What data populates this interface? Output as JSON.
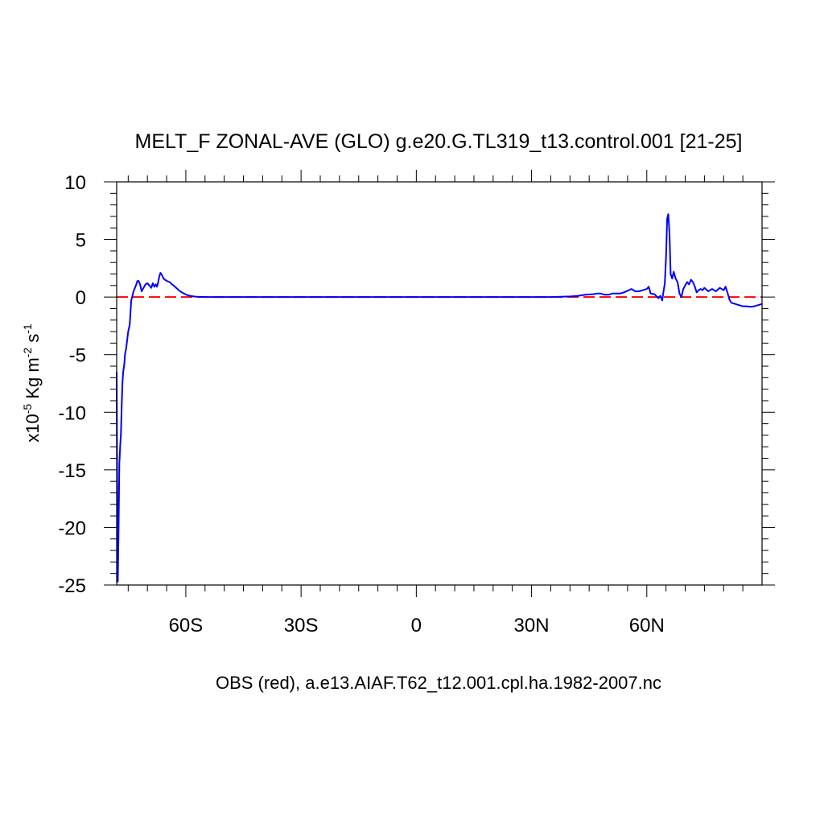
{
  "chart_data": {
    "type": "line",
    "title": "MELT_F ZONAL-AVE (GLO) g.e20.G.TL319_t13.control.001 [21-25]",
    "xlabel": "OBS (red), a.e13.AIAF.T62_t12.001.cpl.ha.1982-2007.nc",
    "ylabel": {
      "prefix": "x10",
      "exp1": "-5",
      "mid": " Kg m",
      "exp2": "-2",
      "mid2": " s",
      "exp3": "-1"
    },
    "xlim": [
      -78,
      90
    ],
    "ylim": [
      -25,
      10
    ],
    "x_ticks": [
      {
        "value": -60,
        "label": "60S"
      },
      {
        "value": -30,
        "label": "30S"
      },
      {
        "value": 0,
        "label": "0"
      },
      {
        "value": 30,
        "label": "30N"
      },
      {
        "value": 60,
        "label": "60N"
      }
    ],
    "y_ticks": [
      {
        "value": 10,
        "label": "10"
      },
      {
        "value": 5,
        "label": "5"
      },
      {
        "value": 0,
        "label": "0"
      },
      {
        "value": -5,
        "label": "-5"
      },
      {
        "value": -10,
        "label": "-10"
      },
      {
        "value": -15,
        "label": "-15"
      },
      {
        "value": -20,
        "label": "-20"
      },
      {
        "value": -25,
        "label": "-25"
      }
    ],
    "series": [
      {
        "color": "#0000ff",
        "style": "solid",
        "x": [
          -78.0,
          -77.9,
          -77.7,
          -77.5,
          -77.3,
          -77.1,
          -76.9,
          -76.7,
          -76.5,
          -76.3,
          -76.0,
          -75.8,
          -75.5,
          -75.0,
          -74.6,
          -74.2,
          -73.6,
          -73.0,
          -72.6,
          -72.3,
          -71.9,
          -71.5,
          -71.0,
          -70.5,
          -70.0,
          -69.5,
          -69.0,
          -68.6,
          -68.2,
          -67.8,
          -67.5,
          -67.2,
          -66.9,
          -66.6,
          -66.2,
          -65.8,
          -65.4,
          -65.0,
          -64.6,
          -64.3,
          -64.0,
          -63.6,
          -63.2,
          -62.5,
          -61.5,
          -60.5,
          -59.5,
          -58.5,
          -57.5,
          -56.5,
          -55.5,
          -54.5,
          -53.0,
          -51.0,
          -48.0,
          -40.0,
          -20.0,
          0.0,
          20.0,
          35.0,
          40.0,
          42.0,
          44.0,
          46.0,
          47.0,
          48.0,
          49.0,
          50.0,
          51.0,
          52.0,
          53.0,
          54.0,
          55.0,
          56.0,
          57.0,
          58.0,
          59.0,
          60.0,
          60.5,
          61.0,
          62.0,
          63.0,
          63.5,
          64.0,
          64.4,
          64.7,
          65.0,
          65.3,
          65.6,
          65.9,
          66.2,
          66.6,
          67.0,
          67.5,
          68.0,
          68.5,
          69.0,
          69.5,
          70.0,
          70.5,
          71.0,
          71.5,
          72.0,
          72.5,
          73.0,
          73.5,
          74.0,
          74.5,
          75.0,
          76.0,
          77.0,
          78.0,
          79.0,
          80.0,
          80.5,
          81.0,
          81.5,
          82.0,
          83.0,
          84.0,
          85.0,
          86.0,
          87.0,
          88.0,
          89.0,
          90.0
        ],
        "y": [
          -6.5,
          -15.0,
          -24.7,
          -20.0,
          -14.5,
          -13.0,
          -11.9,
          -9.5,
          -7.4,
          -6.5,
          -5.8,
          -4.9,
          -4.4,
          -3.0,
          -2.4,
          -0.3,
          0.5,
          1.0,
          1.4,
          1.4,
          1.1,
          0.5,
          0.8,
          1.1,
          1.2,
          1.0,
          0.8,
          1.2,
          0.9,
          1.1,
          0.9,
          1.3,
          1.8,
          2.1,
          1.9,
          1.6,
          1.5,
          1.4,
          1.35,
          1.3,
          1.25,
          1.1,
          1.0,
          0.8,
          0.5,
          0.3,
          0.15,
          0.08,
          0.04,
          0.02,
          0.01,
          0.0,
          0.0,
          0.0,
          0.0,
          0.0,
          0.0,
          0.0,
          0.0,
          0.0,
          0.05,
          0.1,
          0.2,
          0.25,
          0.3,
          0.3,
          0.2,
          0.2,
          0.3,
          0.3,
          0.3,
          0.4,
          0.55,
          0.7,
          0.5,
          0.5,
          0.6,
          0.7,
          0.9,
          0.3,
          0.25,
          -0.1,
          0.1,
          -0.3,
          0.6,
          1.2,
          3.5,
          6.8,
          7.2,
          5.5,
          2.0,
          1.6,
          2.2,
          1.6,
          1.3,
          0.3,
          0.0,
          0.7,
          1.0,
          1.3,
          1.1,
          1.5,
          1.3,
          0.9,
          0.4,
          0.6,
          0.7,
          0.6,
          0.8,
          0.5,
          0.7,
          0.5,
          0.8,
          0.6,
          0.9,
          0.4,
          -0.2,
          -0.5,
          -0.6,
          -0.7,
          -0.8,
          -0.8,
          -0.85,
          -0.8,
          -0.7,
          -0.6
        ]
      },
      {
        "color": "#ff0000",
        "style": "dashed",
        "x": [
          -78.0,
          90.0
        ],
        "y": [
          0.0,
          0.0
        ]
      }
    ]
  }
}
